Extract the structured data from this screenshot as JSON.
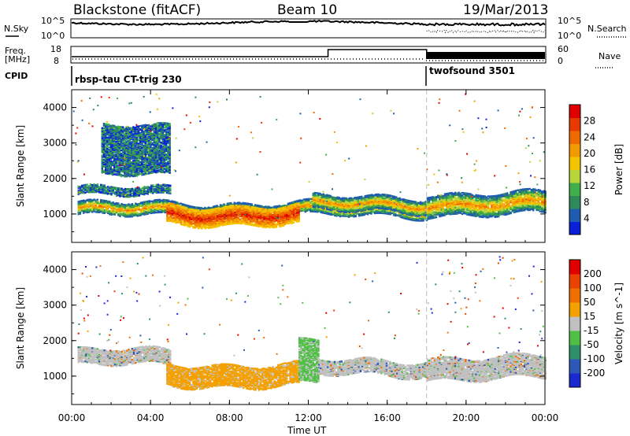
{
  "header": {
    "radar": "Blackstone (fitACF)",
    "beam": "Beam 10",
    "date": "19/Mar/2013"
  },
  "top_panels": {
    "nsky_label": "N.Sky",
    "nsearch_label": "N.Search",
    "nsky_ticks": [
      "10^5",
      "10^0"
    ],
    "nsearch_ticks": [
      "10^5",
      "10^0"
    ],
    "freq_label_1": "Freq.",
    "freq_label_2": "[MHz]",
    "freq_ticks": [
      "18",
      "8"
    ],
    "nave_label": "Nave",
    "nave_ticks": [
      "60",
      "0"
    ],
    "cpid_label": "CPID",
    "cpid_segments": [
      {
        "name": "rbsp-tau CT-trig 230",
        "start_hour": 0
      },
      {
        "name": "twofsound 3501",
        "start_hour": 18
      }
    ]
  },
  "axes": {
    "x_label": "Time UT",
    "x_ticks": [
      "00:00",
      "04:00",
      "08:00",
      "12:00",
      "16:00",
      "20:00",
      "00:00"
    ],
    "y_label": "Slant Range [km]",
    "y_ticks": [
      "4000",
      "3000",
      "2000",
      "1000"
    ]
  },
  "power_colorbar": {
    "label": "Power [dB]",
    "ticks": [
      "28",
      "24",
      "20",
      "16",
      "12",
      "8",
      "4"
    ],
    "colors": [
      "#0a1fd8",
      "#1f5cb0",
      "#2f8a5a",
      "#3fae4b",
      "#b8d63a",
      "#f5c400",
      "#f29a00",
      "#ef6a00",
      "#e83a00",
      "#e00000"
    ]
  },
  "velocity_colorbar": {
    "label": "Velocity [m s^-1]",
    "ticks": [
      "200",
      "100",
      "50",
      "15",
      "-15",
      "-50",
      "-100",
      "-200"
    ],
    "colors": [
      "#1a2ad0",
      "#2d58b8",
      "#2f8f6a",
      "#4fc045",
      "#c0c0c0",
      "#f4a000",
      "#ef7000",
      "#ea4200",
      "#e00000"
    ]
  },
  "chart_data": [
    {
      "type": "heatmap",
      "title": "Power",
      "xlabel": "Time UT",
      "ylabel": "Slant Range [km]",
      "x_range_hours": [
        0,
        24
      ],
      "ylim": [
        200,
        4500
      ],
      "grid": false,
      "colorbar": "Power [dB]",
      "bands": [
        {
          "t0": 0.3,
          "t1": 18,
          "r_center": 1150,
          "r_half": 180,
          "level": "medium"
        },
        {
          "t0": 4.8,
          "t1": 11.5,
          "r_center": 1000,
          "r_half": 260,
          "level": "high"
        },
        {
          "t0": 12.2,
          "t1": 18,
          "r_center": 1300,
          "r_half": 200,
          "level": "medium"
        },
        {
          "t0": 18,
          "t1": 24,
          "r_center": 1300,
          "r_half": 300,
          "level": "medium"
        },
        {
          "t0": 0.3,
          "t1": 5,
          "r_center": 1650,
          "r_half": 120,
          "level": "low"
        },
        {
          "t0": 1.5,
          "t1": 5,
          "r_center": 2800,
          "r_half": 700,
          "level": "low"
        }
      ]
    },
    {
      "type": "heatmap",
      "title": "Velocity",
      "xlabel": "Time UT",
      "ylabel": "Slant Range [km]",
      "x_range_hours": [
        0,
        24
      ],
      "ylim": [
        200,
        4500
      ],
      "grid": false,
      "colorbar": "Velocity [m s^-1]",
      "bands": [
        {
          "t0": 0.3,
          "t1": 5,
          "r_center": 1550,
          "r_half": 220,
          "level": "gray"
        },
        {
          "t0": 4.8,
          "t1": 11.5,
          "r_center": 1050,
          "r_half": 300,
          "level": "orange"
        },
        {
          "t0": 11.5,
          "t1": 12.5,
          "r_center": 1400,
          "r_half": 600,
          "level": "green"
        },
        {
          "t0": 12.5,
          "t1": 18,
          "r_center": 1250,
          "r_half": 200,
          "level": "gray"
        },
        {
          "t0": 18,
          "t1": 24,
          "r_center": 1250,
          "r_half": 300,
          "level": "gray"
        }
      ]
    }
  ]
}
